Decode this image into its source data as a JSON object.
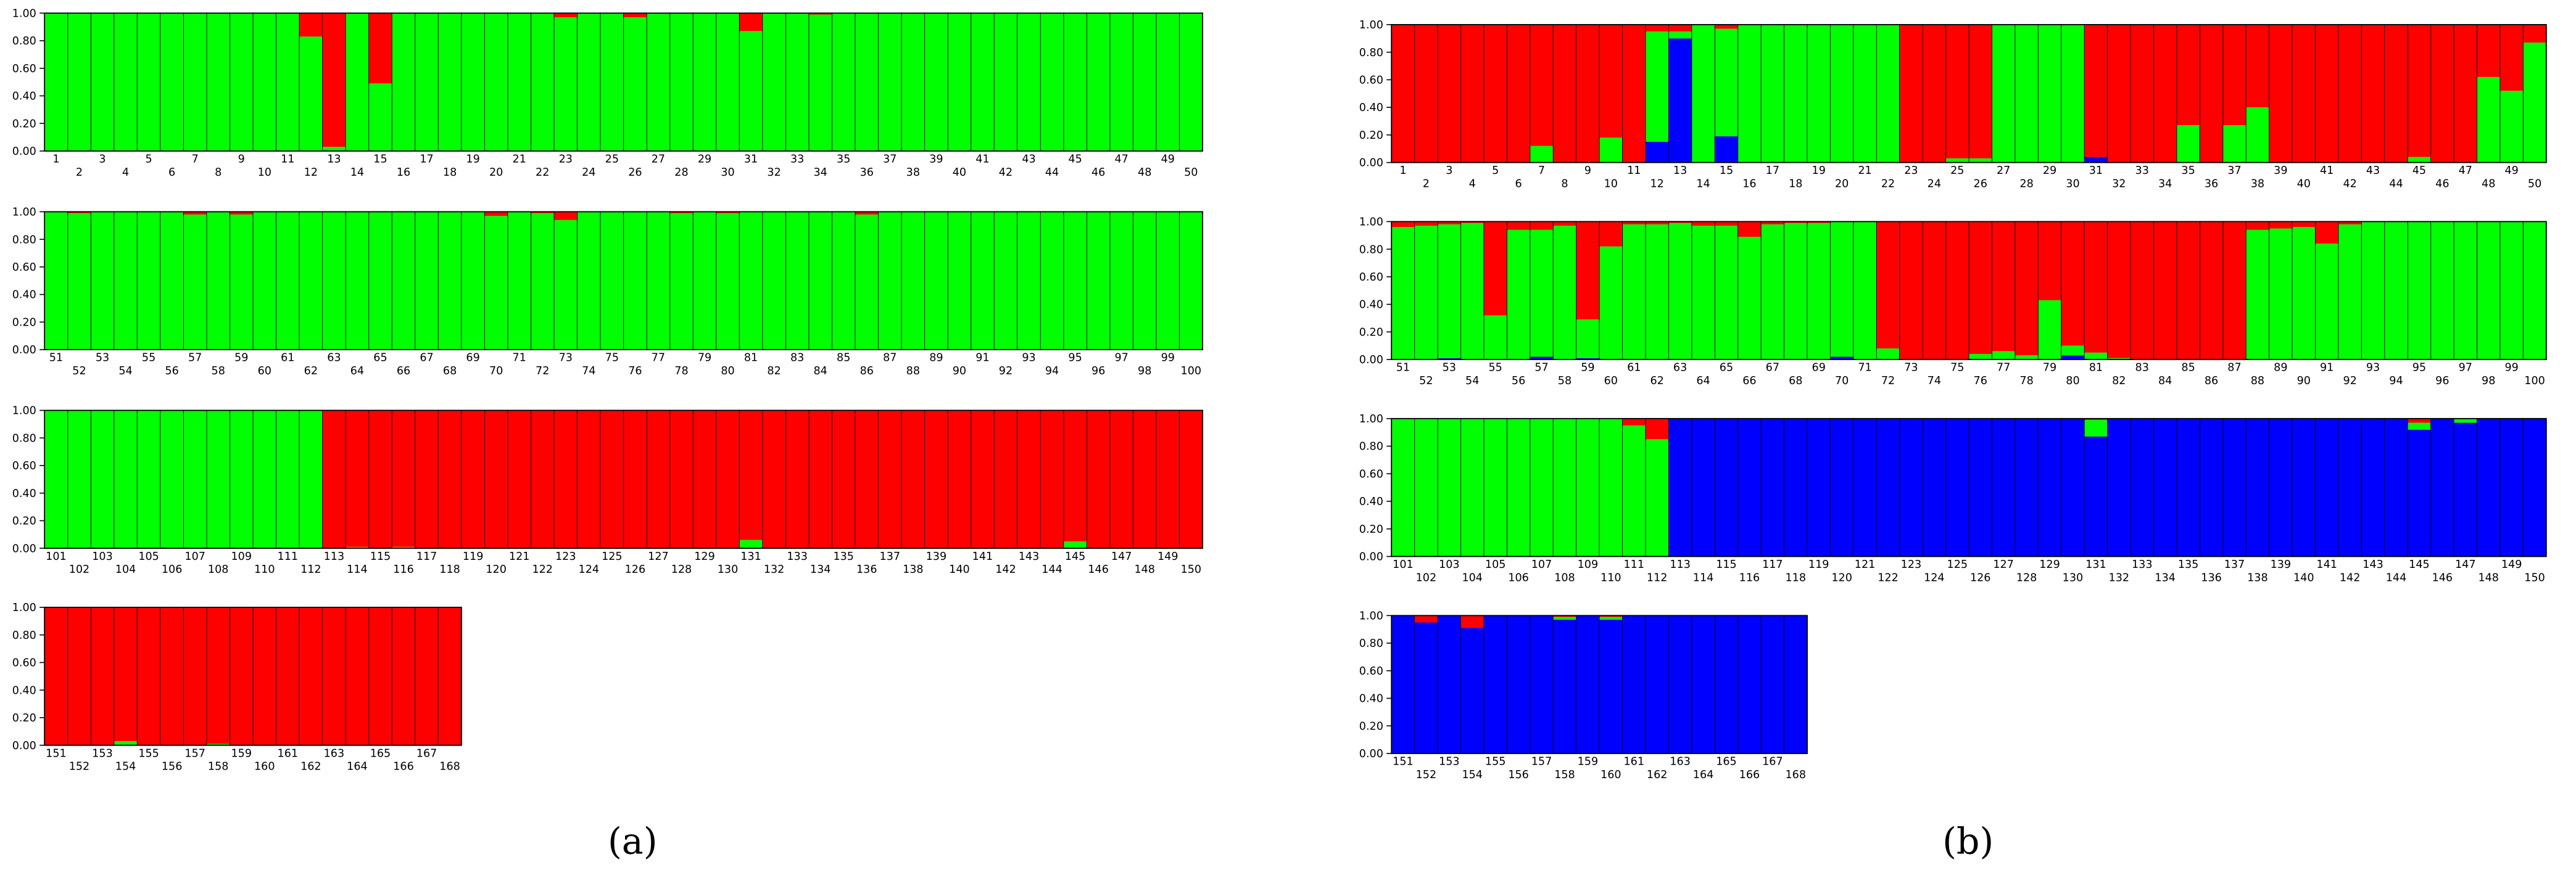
{
  "chart_data": [
    {
      "type": "bar",
      "title": "(a)",
      "stacked": true,
      "categories": [
        1,
        2,
        3,
        4,
        5,
        6,
        7,
        8,
        9,
        10,
        11,
        12,
        13,
        14,
        15,
        16,
        17,
        18,
        19,
        20,
        21,
        22,
        23,
        24,
        25,
        26,
        27,
        28,
        29,
        30,
        31,
        32,
        33,
        34,
        35,
        36,
        37,
        38,
        39,
        40,
        41,
        42,
        43,
        44,
        45,
        46,
        47,
        48,
        49,
        50,
        51,
        52,
        53,
        54,
        55,
        56,
        57,
        58,
        59,
        60,
        61,
        62,
        63,
        64,
        65,
        66,
        67,
        68,
        69,
        70,
        71,
        72,
        73,
        74,
        75,
        76,
        77,
        78,
        79,
        80,
        81,
        82,
        83,
        84,
        85,
        86,
        87,
        88,
        89,
        90,
        91,
        92,
        93,
        94,
        95,
        96,
        97,
        98,
        99,
        100,
        101,
        102,
        103,
        104,
        105,
        106,
        107,
        108,
        109,
        110,
        111,
        112,
        113,
        114,
        115,
        116,
        117,
        118,
        119,
        120,
        121,
        122,
        123,
        124,
        125,
        126,
        127,
        128,
        129,
        130,
        131,
        132,
        133,
        134,
        135,
        136,
        137,
        138,
        139,
        140,
        141,
        142,
        143,
        144,
        145,
        146,
        147,
        148,
        149,
        150,
        151,
        152,
        153,
        154,
        155,
        156,
        157,
        158,
        159,
        160,
        161,
        162,
        163,
        164,
        165,
        166,
        167,
        168
      ],
      "series": [
        {
          "color": "#00ff00",
          "values": [
            1,
            1,
            1,
            1,
            1,
            1,
            1,
            1,
            1,
            1,
            1,
            0.83,
            0.03,
            1,
            0.49,
            1,
            1,
            1,
            1,
            1,
            1,
            1,
            0.97,
            1,
            1,
            0.97,
            1,
            1,
            1,
            1,
            0.87,
            1,
            1,
            0.99,
            1,
            1,
            1,
            1,
            1,
            1,
            1,
            1,
            1,
            1,
            1,
            1,
            1,
            1,
            1,
            1,
            1,
            0.99,
            1,
            1,
            1,
            1,
            0.98,
            1,
            0.98,
            1,
            1,
            1,
            1,
            1,
            1,
            1,
            1,
            1,
            1,
            0.97,
            1,
            0.99,
            0.94,
            1,
            1,
            1,
            1,
            0.99,
            1,
            0.99,
            1,
            1,
            1,
            1,
            1,
            0.98,
            1,
            1,
            1,
            1,
            1,
            1,
            1,
            1,
            1,
            1,
            1,
            1,
            1,
            1,
            1,
            1,
            1,
            1,
            1,
            1,
            1,
            1,
            1,
            1,
            1,
            1,
            0,
            0.01,
            0,
            0.01,
            0,
            0,
            0,
            0,
            0,
            0,
            0,
            0,
            0,
            0,
            0,
            0,
            0,
            0,
            0.06,
            0,
            0,
            0,
            0,
            0,
            0,
            0,
            0,
            0,
            0,
            0,
            0,
            0,
            0.05,
            0,
            0,
            0,
            0,
            0,
            0,
            0,
            0,
            0.03,
            0,
            0,
            0,
            0.01,
            0,
            0,
            0,
            0,
            0,
            0,
            0,
            0,
            0,
            0
          ]
        },
        {
          "color": "#ff0000",
          "values": [
            0,
            0,
            0,
            0,
            0,
            0,
            0,
            0,
            0,
            0,
            0,
            0.17,
            0.97,
            0,
            0.51,
            0,
            0,
            0,
            0,
            0,
            0,
            0,
            0.03,
            0,
            0,
            0.03,
            0,
            0,
            0,
            0,
            0.13,
            0,
            0,
            0.01,
            0,
            0,
            0,
            0,
            0,
            0,
            0,
            0,
            0,
            0,
            0,
            0,
            0,
            0,
            0,
            0,
            0,
            0.01,
            0,
            0,
            0,
            0,
            0.02,
            0,
            0.02,
            0,
            0,
            0,
            0,
            0,
            0,
            0,
            0,
            0,
            0,
            0.03,
            0,
            0.01,
            0.06,
            0,
            0,
            0,
            0,
            0.01,
            0,
            0.01,
            0,
            0,
            0,
            0,
            0,
            0.02,
            0,
            0,
            0,
            0,
            0,
            0,
            0,
            0,
            0,
            0,
            0,
            0,
            0,
            0,
            0,
            0,
            0,
            0,
            0,
            0,
            0,
            0,
            0,
            0,
            0,
            0,
            1,
            0.99,
            1,
            0.99,
            1,
            1,
            1,
            1,
            1,
            1,
            1,
            1,
            1,
            1,
            1,
            1,
            1,
            1,
            0.94,
            1,
            1,
            1,
            1,
            1,
            1,
            1,
            1,
            1,
            1,
            1,
            1,
            1,
            0.95,
            1,
            1,
            1,
            1,
            1,
            1,
            1,
            1,
            0.97,
            1,
            1,
            1,
            0.99,
            1,
            1,
            1,
            1,
            1,
            1,
            1,
            1,
            1,
            1
          ]
        }
      ],
      "ylim": [
        0,
        1
      ],
      "yticks": [
        {
          "value": 0,
          "label": "0.00"
        },
        {
          "value": 0.2,
          "label": "0.20"
        },
        {
          "value": 0.4,
          "label": "0.40"
        },
        {
          "value": 0.6,
          "label": "0.60"
        },
        {
          "value": 0.8,
          "label": "0.80"
        },
        {
          "value": 1,
          "label": "1.00"
        }
      ]
    },
    {
      "type": "bar",
      "title": "(b)",
      "stacked": true,
      "categories": [
        1,
        2,
        3,
        4,
        5,
        6,
        7,
        8,
        9,
        10,
        11,
        12,
        13,
        14,
        15,
        16,
        17,
        18,
        19,
        20,
        21,
        22,
        23,
        24,
        25,
        26,
        27,
        28,
        29,
        30,
        31,
        32,
        33,
        34,
        35,
        36,
        37,
        38,
        39,
        40,
        41,
        42,
        43,
        44,
        45,
        46,
        47,
        48,
        49,
        50,
        51,
        52,
        53,
        54,
        55,
        56,
        57,
        58,
        59,
        60,
        61,
        62,
        63,
        64,
        65,
        66,
        67,
        68,
        69,
        70,
        71,
        72,
        73,
        74,
        75,
        76,
        77,
        78,
        79,
        80,
        81,
        82,
        83,
        84,
        85,
        86,
        87,
        88,
        89,
        90,
        91,
        92,
        93,
        94,
        95,
        96,
        97,
        98,
        99,
        100,
        101,
        102,
        103,
        104,
        105,
        106,
        107,
        108,
        109,
        110,
        111,
        112,
        113,
        114,
        115,
        116,
        117,
        118,
        119,
        120,
        121,
        122,
        123,
        124,
        125,
        126,
        127,
        128,
        129,
        130,
        131,
        132,
        133,
        134,
        135,
        136,
        137,
        138,
        139,
        140,
        141,
        142,
        143,
        144,
        145,
        146,
        147,
        148,
        149,
        150,
        151,
        152,
        153,
        154,
        155,
        156,
        157,
        158,
        159,
        160,
        161,
        162,
        163,
        164,
        165,
        166,
        167,
        168
      ],
      "series": [
        {
          "color": "#0000ff",
          "values": [
            0,
            0,
            0,
            0,
            0,
            0,
            0,
            0,
            0,
            0,
            0,
            0.15,
            0.9,
            0,
            0.19,
            0,
            0,
            0,
            0,
            0,
            0,
            0,
            0,
            0,
            0,
            0,
            0,
            0,
            0,
            0,
            0.04,
            0,
            0,
            0,
            0,
            0,
            0,
            0,
            0,
            0,
            0,
            0,
            0,
            0,
            0,
            0,
            0,
            0,
            0,
            0,
            0,
            0,
            0.01,
            0,
            0,
            0,
            0.02,
            0,
            0.01,
            0,
            0,
            0,
            0,
            0,
            0,
            0,
            0,
            0,
            0,
            0.02,
            0,
            0,
            0,
            0,
            0,
            0,
            0,
            0,
            0,
            0.03,
            0,
            0,
            0,
            0,
            0,
            0,
            0,
            0,
            0,
            0,
            0,
            0,
            0,
            0,
            0,
            0,
            0,
            0,
            0,
            0,
            0,
            0,
            0,
            0,
            0,
            0,
            0,
            0,
            0,
            0,
            0,
            0,
            1,
            1,
            1,
            1,
            1,
            1,
            1,
            1,
            1,
            1,
            1,
            1,
            1,
            1,
            1,
            1,
            1,
            1,
            0.87,
            1,
            1,
            1,
            1,
            1,
            1,
            1,
            1,
            1,
            1,
            1,
            1,
            1,
            0.92,
            1,
            0.97,
            1,
            1,
            1,
            1,
            0.95,
            1,
            0.91,
            1,
            1,
            1,
            0.97,
            1,
            0.97,
            1,
            1,
            1,
            1,
            1,
            1,
            1,
            1
          ]
        },
        {
          "color": "#00ff00",
          "values": [
            0,
            0,
            0,
            0,
            0,
            0,
            0.12,
            0,
            0,
            0.18,
            0,
            0.8,
            0.05,
            1,
            0.78,
            1,
            1,
            1,
            1,
            1,
            1,
            1,
            0,
            0,
            0.03,
            0.03,
            1,
            1,
            1,
            1,
            0,
            0,
            0,
            0,
            0.27,
            0,
            0.27,
            0.4,
            0,
            0,
            0,
            0,
            0,
            0,
            0.04,
            0,
            0,
            0.62,
            0.52,
            0.87,
            0.96,
            0.97,
            0.97,
            0.99,
            0.32,
            0.94,
            0.92,
            0.97,
            0.28,
            0.82,
            0.98,
            0.98,
            0.99,
            0.97,
            0.97,
            0.89,
            0.98,
            0.99,
            0.99,
            0.98,
            1,
            0.08,
            0,
            0,
            0,
            0.04,
            0.06,
            0.03,
            0.43,
            0.07,
            0.05,
            0.01,
            0,
            0,
            0,
            0,
            0,
            0.94,
            0.95,
            0.96,
            0.84,
            0.98,
            1,
            1,
            1,
            1,
            1,
            1,
            1,
            1,
            1,
            1,
            1,
            1,
            1,
            1,
            1,
            1,
            1,
            1,
            0.95,
            0.85,
            0,
            0,
            0,
            0,
            0,
            0,
            0,
            0,
            0,
            0,
            0,
            0,
            0,
            0,
            0,
            0,
            0,
            0,
            0.12,
            0,
            0,
            0,
            0,
            0,
            0,
            0,
            0,
            0,
            0,
            0,
            0,
            0,
            0.05,
            0,
            0.03,
            0,
            0,
            0,
            0,
            0,
            0,
            0,
            0,
            0,
            0,
            0.02,
            0,
            0.02,
            0,
            0,
            0,
            0,
            0,
            0,
            0,
            0
          ]
        },
        {
          "color": "#ff0000",
          "values": [
            1,
            1,
            1,
            1,
            1,
            1,
            0.88,
            1,
            1,
            0.82,
            1,
            0.05,
            0.05,
            0,
            0.03,
            0,
            0,
            0,
            0,
            0,
            0,
            0,
            1,
            1,
            0.97,
            0.97,
            0,
            0,
            0,
            0,
            0.96,
            1,
            1,
            1,
            0.73,
            1,
            0.73,
            0.6,
            1,
            1,
            1,
            1,
            1,
            1,
            0.96,
            1,
            1,
            0.38,
            0.48,
            0.13,
            0.04,
            0.03,
            0.02,
            0.01,
            0.68,
            0.06,
            0.06,
            0.03,
            0.71,
            0.18,
            0.02,
            0.02,
            0.01,
            0.03,
            0.03,
            0.11,
            0.02,
            0.01,
            0.01,
            0,
            0,
            0.92,
            1,
            1,
            1,
            0.96,
            0.94,
            0.97,
            0.57,
            0.9,
            0.95,
            0.99,
            1,
            1,
            1,
            1,
            1,
            0.06,
            0.05,
            0.04,
            0.16,
            0.02,
            0,
            0,
            0,
            0,
            0,
            0,
            0,
            0,
            0,
            0,
            0,
            0,
            0,
            0,
            0,
            0,
            0,
            0,
            0.05,
            0.15,
            0,
            0,
            0,
            0,
            0,
            0,
            0,
            0,
            0,
            0,
            0,
            0,
            0,
            0,
            0,
            0,
            0,
            0,
            0.01,
            0,
            0,
            0,
            0,
            0,
            0,
            0,
            0,
            0,
            0,
            0,
            0,
            0,
            0.03,
            0,
            0,
            0,
            0,
            0,
            0,
            0.05,
            0,
            0.09,
            0,
            0,
            0,
            0.01,
            0,
            0.01,
            0,
            0,
            0,
            0,
            0,
            0,
            0,
            0
          ]
        }
      ],
      "ylim": [
        0,
        1
      ],
      "yticks": [
        {
          "value": 0,
          "label": "0.00"
        },
        {
          "value": 0.2,
          "label": "0.20"
        },
        {
          "value": 0.4,
          "label": "0.40"
        },
        {
          "value": 0.6,
          "label": "0.60"
        },
        {
          "value": 0.8,
          "label": "0.80"
        },
        {
          "value": 1,
          "label": "1.00"
        }
      ]
    }
  ]
}
